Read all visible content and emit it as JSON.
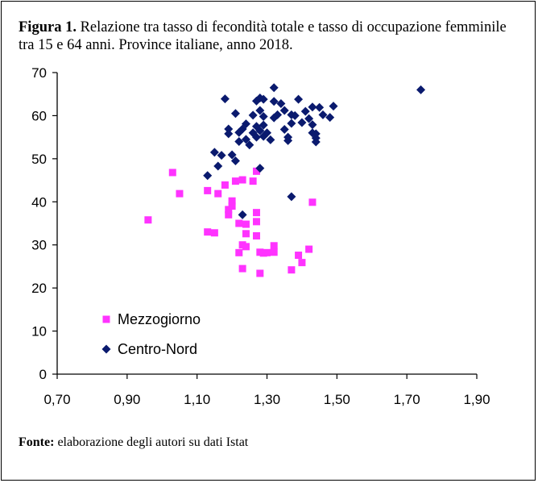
{
  "figure": {
    "caption_label": "Figura 1.",
    "caption_text": "Relazione tra tasso di fecondità totale e tasso di occupazione femminile tra 15 e 64 anni. Province italiane, anno 2018.",
    "source_label": "Fonte:",
    "source_text": "elaborazione degli autori su dati Istat"
  },
  "chart_data": {
    "type": "scatter",
    "title": "",
    "xlabel": "",
    "ylabel": "",
    "xlim": [
      0.7,
      1.9
    ],
    "ylim": [
      0,
      70
    ],
    "x_ticks": [
      "0,70",
      "0,90",
      "1,10",
      "1,30",
      "1,50",
      "1,70",
      "1,90"
    ],
    "y_ticks": [
      "0",
      "10",
      "20",
      "30",
      "40",
      "50",
      "60",
      "70"
    ],
    "grid": "none",
    "legend_position": "lower-left",
    "series": [
      {
        "name": "Mezzogiorno",
        "marker": "square",
        "color": "#ff33ff",
        "points": [
          [
            0.96,
            35.8
          ],
          [
            1.03,
            46.8
          ],
          [
            1.05,
            41.9
          ],
          [
            1.13,
            42.6
          ],
          [
            1.13,
            33.0
          ],
          [
            1.15,
            32.8
          ],
          [
            1.16,
            41.9
          ],
          [
            1.18,
            43.9
          ],
          [
            1.19,
            37.0
          ],
          [
            1.19,
            38.2
          ],
          [
            1.2,
            40.2
          ],
          [
            1.2,
            39.0
          ],
          [
            1.21,
            44.8
          ],
          [
            1.22,
            28.2
          ],
          [
            1.22,
            35.0
          ],
          [
            1.23,
            45.1
          ],
          [
            1.23,
            30.0
          ],
          [
            1.23,
            24.5
          ],
          [
            1.24,
            34.8
          ],
          [
            1.24,
            32.6
          ],
          [
            1.24,
            29.6
          ],
          [
            1.26,
            44.8
          ],
          [
            1.27,
            47.1
          ],
          [
            1.27,
            37.5
          ],
          [
            1.27,
            35.4
          ],
          [
            1.27,
            32.1
          ],
          [
            1.28,
            28.3
          ],
          [
            1.28,
            23.4
          ],
          [
            1.29,
            28.1
          ],
          [
            1.3,
            28.2
          ],
          [
            1.32,
            29.8
          ],
          [
            1.32,
            28.3
          ],
          [
            1.37,
            24.2
          ],
          [
            1.39,
            27.6
          ],
          [
            1.4,
            25.9
          ],
          [
            1.42,
            29.0
          ],
          [
            1.43,
            39.9
          ]
        ]
      },
      {
        "name": "Centro-Nord",
        "marker": "diamond",
        "color": "#0a1a6e",
        "points": [
          [
            1.13,
            46.1
          ],
          [
            1.15,
            51.5
          ],
          [
            1.16,
            48.3
          ],
          [
            1.17,
            50.8
          ],
          [
            1.18,
            63.9
          ],
          [
            1.19,
            56.9
          ],
          [
            1.19,
            55.8
          ],
          [
            1.2,
            50.9
          ],
          [
            1.21,
            60.5
          ],
          [
            1.21,
            49.5
          ],
          [
            1.22,
            56.1
          ],
          [
            1.22,
            54.0
          ],
          [
            1.23,
            37.0
          ],
          [
            1.23,
            56.9
          ],
          [
            1.24,
            58.1
          ],
          [
            1.24,
            54.5
          ],
          [
            1.25,
            53.2
          ],
          [
            1.26,
            60.1
          ],
          [
            1.26,
            56.0
          ],
          [
            1.27,
            63.4
          ],
          [
            1.27,
            57.5
          ],
          [
            1.27,
            55.0
          ],
          [
            1.28,
            64.1
          ],
          [
            1.28,
            61.2
          ],
          [
            1.28,
            56.5
          ],
          [
            1.29,
            59.8
          ],
          [
            1.29,
            57.8
          ],
          [
            1.29,
            55.2
          ],
          [
            1.28,
            47.8
          ],
          [
            1.29,
            63.8
          ],
          [
            1.3,
            56.0
          ],
          [
            1.31,
            54.4
          ],
          [
            1.32,
            66.5
          ],
          [
            1.32,
            63.3
          ],
          [
            1.32,
            59.5
          ],
          [
            1.33,
            60.2
          ],
          [
            1.34,
            62.8
          ],
          [
            1.35,
            56.8
          ],
          [
            1.35,
            61.2
          ],
          [
            1.36,
            55.0
          ],
          [
            1.36,
            54.2
          ],
          [
            1.37,
            58.2
          ],
          [
            1.37,
            41.2
          ],
          [
            1.37,
            60.2
          ],
          [
            1.38,
            60.0
          ],
          [
            1.39,
            63.8
          ],
          [
            1.4,
            58.4
          ],
          [
            1.41,
            61.0
          ],
          [
            1.42,
            59.3
          ],
          [
            1.43,
            62.0
          ],
          [
            1.43,
            57.9
          ],
          [
            1.43,
            56.0
          ],
          [
            1.44,
            54.8
          ],
          [
            1.44,
            53.9
          ],
          [
            1.44,
            55.8
          ],
          [
            1.45,
            61.9
          ],
          [
            1.46,
            60.2
          ],
          [
            1.48,
            59.6
          ],
          [
            1.49,
            62.2
          ],
          [
            1.74,
            66.0
          ]
        ]
      }
    ]
  }
}
